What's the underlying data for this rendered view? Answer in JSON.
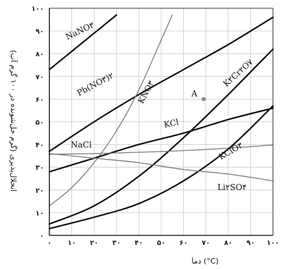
{
  "chart_data": {
    "type": "line",
    "xlabel": "دما (°C)",
    "ylabel": "انحلال‌پذیری (گرم حل‌شونده در ۱۰۰ گرم آب)",
    "xlim": [
      0,
      100
    ],
    "ylim": [
      0,
      100
    ],
    "x_ticks": [
      "۰",
      "۱۰",
      "۲۰",
      "۳۰",
      "۴۰",
      "۵۰",
      "۶۰",
      "۷۰",
      "۸۰",
      "۹۰",
      "۱۰۰"
    ],
    "y_ticks": [
      "۰",
      "۱۰",
      "۲۰",
      "۳۰",
      "۴۰",
      "۵۰",
      "۶۰",
      "۷۰",
      "۸۰",
      "۹۰",
      "۱۰۰"
    ],
    "grid": true,
    "series": [
      {
        "name": "NaNO۳",
        "style": "bold",
        "x": [
          0,
          10,
          20,
          30
        ],
        "y": [
          73,
          81,
          89,
          97
        ]
      },
      {
        "name": "Pb(NO۳)۲",
        "style": "bold",
        "x": [
          0,
          20,
          40,
          60,
          80,
          100
        ],
        "y": [
          37,
          50,
          62,
          73,
          84,
          96
        ]
      },
      {
        "name": "KNO۳",
        "style": "thin",
        "x": [
          0,
          10,
          20,
          30,
          40,
          50,
          55
        ],
        "y": [
          13,
          21,
          32,
          46,
          64,
          86,
          97
        ]
      },
      {
        "name": "K۲Cr۲O۷",
        "style": "bold",
        "x": [
          0,
          20,
          40,
          60,
          80,
          100
        ],
        "y": [
          5,
          13,
          26,
          43,
          62,
          82
        ]
      },
      {
        "name": "KCl",
        "style": "bold",
        "x": [
          0,
          20,
          40,
          60,
          80,
          100
        ],
        "y": [
          28,
          34,
          40,
          45,
          51,
          56
        ]
      },
      {
        "name": "NaCl",
        "style": "thin",
        "x": [
          0,
          20,
          40,
          60,
          80,
          100
        ],
        "y": [
          35.7,
          36,
          36.6,
          37.3,
          38.4,
          39.8
        ]
      },
      {
        "name": "KClO۳",
        "style": "bold",
        "x": [
          0,
          20,
          40,
          60,
          80,
          100
        ],
        "y": [
          3,
          8,
          14,
          24,
          38,
          57
        ]
      },
      {
        "name": "Li۲SO۴",
        "style": "thin",
        "x": [
          0,
          20,
          40,
          60,
          80,
          100
        ],
        "y": [
          36,
          34,
          32,
          29,
          27,
          24
        ]
      }
    ],
    "points": [
      {
        "label": "A",
        "x": 69,
        "y": 60
      }
    ]
  }
}
